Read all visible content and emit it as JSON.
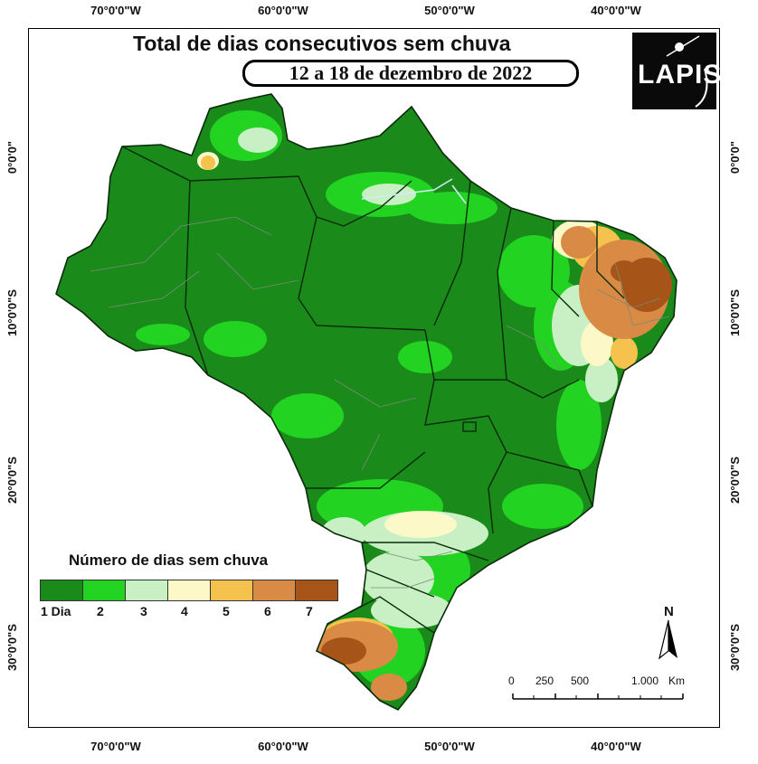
{
  "title": "Total de dias consecutivos sem chuva",
  "subtitle": "12 a 18 de dezembro de 2022",
  "logo_text": "LAPIS",
  "axes": {
    "longitude_labels": [
      "70°0'0\"W",
      "60°0'0\"W",
      "50°0'0\"W",
      "40°0'0\"W"
    ],
    "latitude_labels": [
      "0°0'0\"",
      "10°0'0\"S",
      "20°0'0\"S",
      "30°0'0\"S"
    ]
  },
  "legend": {
    "title": "Número de dias sem chuva",
    "items": [
      {
        "label": "1 Dia",
        "color": "#1a8a1a"
      },
      {
        "label": "2",
        "color": "#22d322"
      },
      {
        "label": "3",
        "color": "#c8f0c4"
      },
      {
        "label": "4",
        "color": "#fdf8c8"
      },
      {
        "label": "5",
        "color": "#f5c24e"
      },
      {
        "label": "6",
        "color": "#d98a44"
      },
      {
        "label": "7",
        "color": "#a65418"
      }
    ]
  },
  "north_label": "N",
  "scale": {
    "labels": [
      "0",
      "250",
      "500",
      "1.000"
    ],
    "unit": "Km"
  }
}
